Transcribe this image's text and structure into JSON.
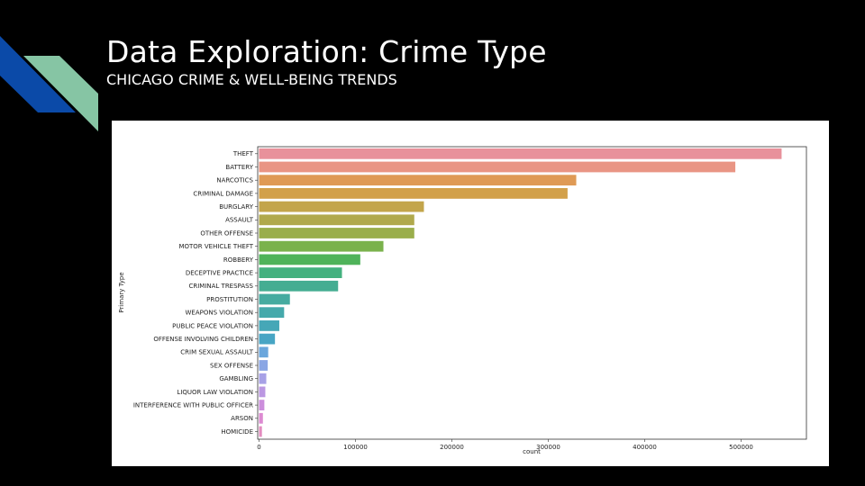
{
  "slide": {
    "title": "Data Exploration: Crime Type",
    "subtitle": "CHICAGO CRIME & WELL-BEING TRENDS",
    "accent_colors": [
      "#0b4aa8",
      "#86c5a4"
    ]
  },
  "chart_data": {
    "type": "bar",
    "orientation": "horizontal",
    "xlabel": "count",
    "ylabel": "Primary Type",
    "xlim": [
      0,
      570000
    ],
    "xticks": [
      0,
      100000,
      200000,
      300000,
      400000,
      500000
    ],
    "grid": false,
    "categories": [
      "THEFT",
      "BATTERY",
      "NARCOTICS",
      "CRIMINAL DAMAGE",
      "BURGLARY",
      "ASSAULT",
      "OTHER OFFENSE",
      "MOTOR VEHICLE THEFT",
      "ROBBERY",
      "DECEPTIVE PRACTICE",
      "CRIMINAL TRESPASS",
      "PROSTITUTION",
      "WEAPONS VIOLATION",
      "PUBLIC PEACE VIOLATION",
      "OFFENSE INVOLVING CHILDREN",
      "CRIM SEXUAL ASSAULT",
      "SEX OFFENSE",
      "GAMBLING",
      "LIQUOR LAW VIOLATION",
      "INTERFERENCE WITH PUBLIC OFFICER",
      "ARSON",
      "HOMICIDE"
    ],
    "values": [
      542000,
      494000,
      329000,
      320000,
      171000,
      161000,
      161000,
      129000,
      105000,
      86000,
      82000,
      32000,
      26000,
      21000,
      16500,
      9500,
      9000,
      7500,
      6500,
      5500,
      4000,
      3000
    ],
    "colors": [
      "#e8919b",
      "#e99584",
      "#df9a55",
      "#d2a04a",
      "#c3a54b",
      "#b0a94c",
      "#9aae4b",
      "#7ab24c",
      "#4fb35a",
      "#44b17f",
      "#44ad92",
      "#45aba0",
      "#45a9ab",
      "#46a7b7",
      "#47a5c4",
      "#6aa6dc",
      "#8aa6e4",
      "#a7a1e6",
      "#bb97e2",
      "#cc8edc",
      "#dc8ad1",
      "#e38cbf"
    ]
  }
}
